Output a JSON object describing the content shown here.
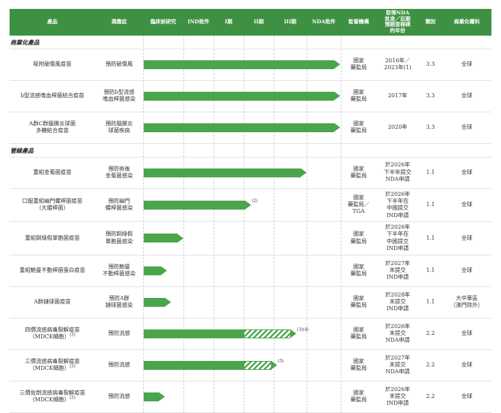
{
  "colors": {
    "header_green": "#3e9142",
    "arrow_green": "#4aa54d",
    "grid_line": "#e2e2e2",
    "dash_line": "#cfcfcf"
  },
  "header": {
    "columns": [
      "產品",
      "適應症",
      "臨床前研究",
      "IND批件",
      "I期",
      "II期",
      "III期",
      "NDA批件",
      "監管機構",
      "取得NDA\n批准／近期\n預期里程碑\n的年份",
      "類別",
      "商業化權利"
    ]
  },
  "sections": [
    {
      "label": "商業化產品",
      "rows": [
        {
          "product": "吸附破傷風疫苗",
          "product_note": "",
          "indication": "預防破傷風",
          "arrow": {
            "solid": 278,
            "hatch": 0,
            "note": ""
          },
          "regulator": "國家\n藥監局",
          "milestone": "2016年／\n2023年(1)",
          "category": "3.3",
          "rights": "全球"
        },
        {
          "product": "b型流感嗜血桿菌結合疫苗",
          "product_note": "",
          "indication": "預防b型流感\n嗜血桿菌感染",
          "arrow": {
            "solid": 278,
            "hatch": 0,
            "note": ""
          },
          "regulator": "國家\n藥監局",
          "milestone": "2017年",
          "category": "3.3",
          "rights": "全球"
        },
        {
          "product": "A群C群腦膜炎球菌\n多糖結合疫苗",
          "product_note": "",
          "indication": "預防腦膜炎\n球菌疾病",
          "arrow": {
            "solid": 278,
            "hatch": 0,
            "note": ""
          },
          "regulator": "國家\n藥監局",
          "milestone": "2020年",
          "category": "3.3",
          "rights": "全球"
        }
      ]
    },
    {
      "label": "管線產品",
      "rows": [
        {
          "product": "重組金葡菌疫苗",
          "product_note": "",
          "indication": "預防術後\n金葡菌感染",
          "arrow": {
            "solid": 229,
            "hatch": 0,
            "note": ""
          },
          "regulator": "國家\n藥監局",
          "milestone": "於2026年\n下半年提交\nNDA申請",
          "category": "1.1",
          "rights": "全球"
        },
        {
          "product": "口服重組幽門螺桿菌疫苗\n（大腸桿菌）",
          "product_note": "",
          "indication": "預防幽門\n螺桿菌感染",
          "arrow": {
            "solid": 148,
            "hatch": 0,
            "note": "(2)"
          },
          "regulator": "國家\n藥監局／\nTGA",
          "milestone": "於2026年\n下半年在\n中國提交\nIND申請",
          "category": "1.1",
          "rights": "全球"
        },
        {
          "product": "重組銅綠假單胞菌疫苗",
          "product_note": "",
          "indication": "預防銅綠假\n單胞菌感染",
          "arrow": {
            "solid": 49,
            "hatch": 0,
            "note": ""
          },
          "regulator": "國家\n藥監局",
          "milestone": "於2026年\n下半年在\n中國提交\nIND申請",
          "category": "1.1",
          "rights": "全球"
        },
        {
          "product": "重組鮑曼不動桿菌蛋白疫苗",
          "product_note": "",
          "indication": "預防鮑曼\n不動桿菌感染",
          "arrow": {
            "solid": 25,
            "hatch": 0,
            "note": ""
          },
          "regulator": "國家\n藥監局",
          "milestone": "於2027年\n末提交\nIND申請",
          "category": "1.1",
          "rights": "全球"
        },
        {
          "product": "A群鏈球菌疫苗",
          "product_note": "",
          "indication": "預防A群\n鏈球菌感染",
          "arrow": {
            "solid": 31,
            "hatch": 0,
            "note": ""
          },
          "regulator": "國家\n藥監局",
          "milestone": "於2028年\n末提交\nIND申請",
          "category": "1.1",
          "rights": "大中華區\n（澳門除外）"
        },
        {
          "product": "四價流感病毒裂解疫苗\n（MDCK細胞）",
          "product_note": "(3)",
          "indication": "預防流感",
          "arrow": {
            "solid": 147,
            "hatch": 67,
            "note": "(3)(4)"
          },
          "regulator": "國家\n藥監局",
          "milestone": "於2026年\n末提交\nNDA申請",
          "category": "2.2",
          "rights": "全球"
        },
        {
          "product": "三價流感病毒裂解疫苗\n（MDCK細胞）",
          "product_note": "(3)",
          "indication": "預防流感",
          "arrow": {
            "solid": 147,
            "hatch": 39,
            "note": "(5)"
          },
          "regulator": "國家\n藥監局",
          "milestone": "於2027年\n末提交\nNDA申請",
          "category": "2.2",
          "rights": "全球"
        },
        {
          "product": "三價佐劑流感病毒裂解疫苗\n（MDCK細胞）",
          "product_note": "(3)",
          "indication": "預防流感",
          "arrow": {
            "solid": 22,
            "hatch": 0,
            "note": ""
          },
          "regulator": "國家\n藥監局",
          "milestone": "於2026年\n末提交\nIND申請",
          "category": "2.2",
          "rights": "全球"
        }
      ]
    }
  ]
}
